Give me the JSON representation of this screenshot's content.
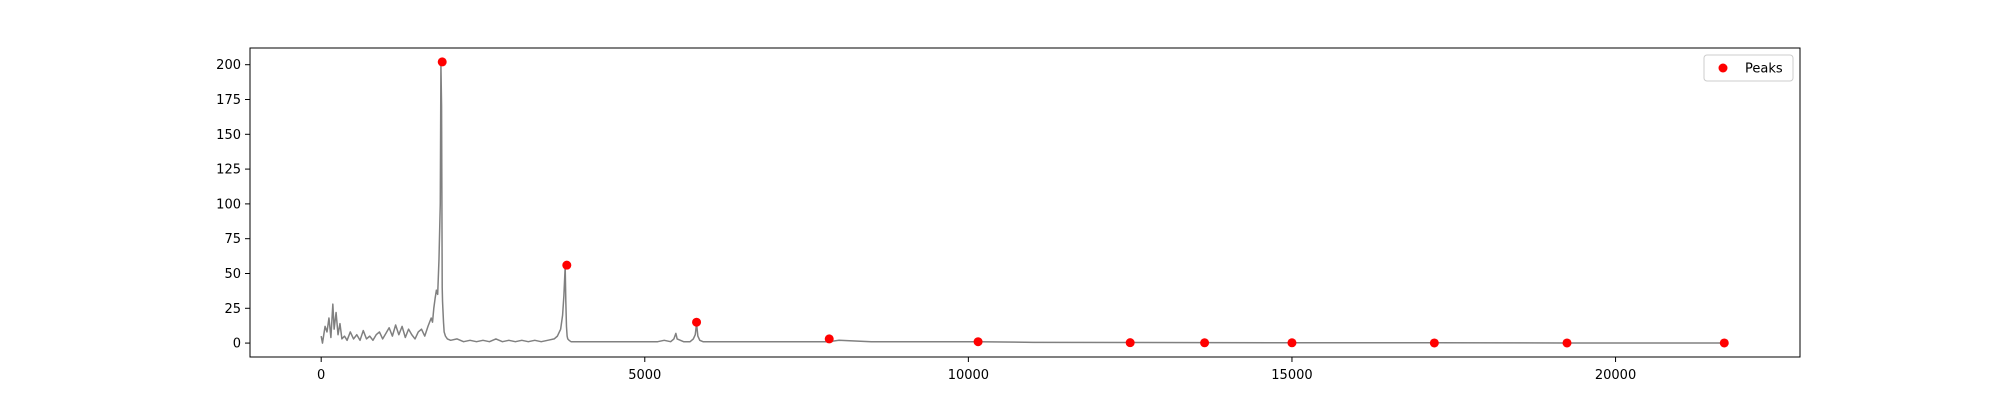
{
  "chart_data": {
    "type": "line",
    "title": "",
    "xlabel": "",
    "ylabel": "",
    "xlim": [
      -1100,
      22850
    ],
    "ylim": [
      -10,
      212
    ],
    "grid": false,
    "legend_placement": "top-right",
    "x_ticks": [
      0,
      5000,
      10000,
      15000,
      20000
    ],
    "x_tick_labels": [
      "0",
      "5000",
      "10000",
      "15000",
      "20000"
    ],
    "y_ticks": [
      0,
      25,
      50,
      75,
      100,
      125,
      150,
      175,
      200
    ],
    "y_tick_labels": [
      "0",
      "25",
      "50",
      "75",
      "100",
      "125",
      "150",
      "175",
      "200"
    ],
    "colors": {
      "signal": "#808080",
      "peaks": "#ff0000",
      "axes": "#000000"
    },
    "signal": {
      "x": [
        0,
        20,
        60,
        90,
        120,
        150,
        180,
        200,
        230,
        260,
        290,
        320,
        360,
        400,
        450,
        500,
        550,
        600,
        650,
        700,
        750,
        800,
        850,
        900,
        950,
        1000,
        1050,
        1100,
        1150,
        1200,
        1250,
        1300,
        1350,
        1400,
        1450,
        1500,
        1550,
        1600,
        1650,
        1700,
        1720,
        1740,
        1760,
        1780,
        1800,
        1820,
        1840,
        1850,
        1860,
        1870,
        1875,
        1880,
        1890,
        1900,
        1920,
        1950,
        2000,
        2100,
        2200,
        2300,
        2400,
        2500,
        2600,
        2700,
        2800,
        2900,
        3000,
        3100,
        3200,
        3300,
        3400,
        3500,
        3600,
        3650,
        3700,
        3730,
        3750,
        3770,
        3780,
        3790,
        3800,
        3810,
        3830,
        3860,
        3900,
        4000,
        4200,
        4400,
        4600,
        4800,
        5000,
        5200,
        5300,
        5400,
        5450,
        5480,
        5500,
        5550,
        5600,
        5700,
        5750,
        5780,
        5800,
        5820,
        5850,
        5900,
        6000,
        6500,
        7000,
        7500,
        7850,
        8000,
        8500,
        9000,
        10000,
        10150,
        11000,
        12500,
        13650,
        15000,
        17200,
        19250,
        21000,
        21680
      ],
      "y": [
        5,
        0,
        12,
        8,
        18,
        4,
        28,
        10,
        22,
        6,
        14,
        3,
        5,
        2,
        8,
        3,
        6,
        2,
        9,
        3,
        5,
        2,
        6,
        8,
        3,
        7,
        11,
        5,
        13,
        6,
        12,
        4,
        10,
        6,
        3,
        8,
        10,
        5,
        12,
        18,
        15,
        25,
        32,
        38,
        35,
        60,
        100,
        200,
        170,
        40,
        30,
        25,
        15,
        8,
        5,
        3,
        2,
        3,
        1,
        2,
        1,
        2,
        1,
        3,
        1,
        2,
        1,
        2,
        1,
        2,
        1,
        2,
        3,
        5,
        10,
        20,
        34,
        55,
        30,
        12,
        5,
        3,
        2,
        1,
        1,
        1,
        1,
        1,
        1,
        1,
        1,
        1,
        2,
        1,
        3,
        7,
        3,
        2,
        1,
        1,
        3,
        6,
        14,
        5,
        2,
        1,
        1,
        1,
        1,
        1,
        1,
        2,
        1,
        1,
        1,
        1,
        0.5,
        0.4,
        0.3,
        0.2,
        0.2,
        0.1,
        0.1,
        0.1
      ]
    },
    "series": [
      {
        "name": "Peaks",
        "type": "scatter",
        "x": [
          1870,
          3795,
          5800,
          7850,
          10150,
          12500,
          13650,
          15000,
          17200,
          19250,
          21680
        ],
        "y": [
          202,
          56,
          15,
          3,
          1,
          0.3,
          0.2,
          0.2,
          0.1,
          0.1,
          0.1
        ]
      }
    ],
    "legend": [
      {
        "label": "Peaks",
        "marker": "circle",
        "color": "#ff0000"
      }
    ]
  }
}
